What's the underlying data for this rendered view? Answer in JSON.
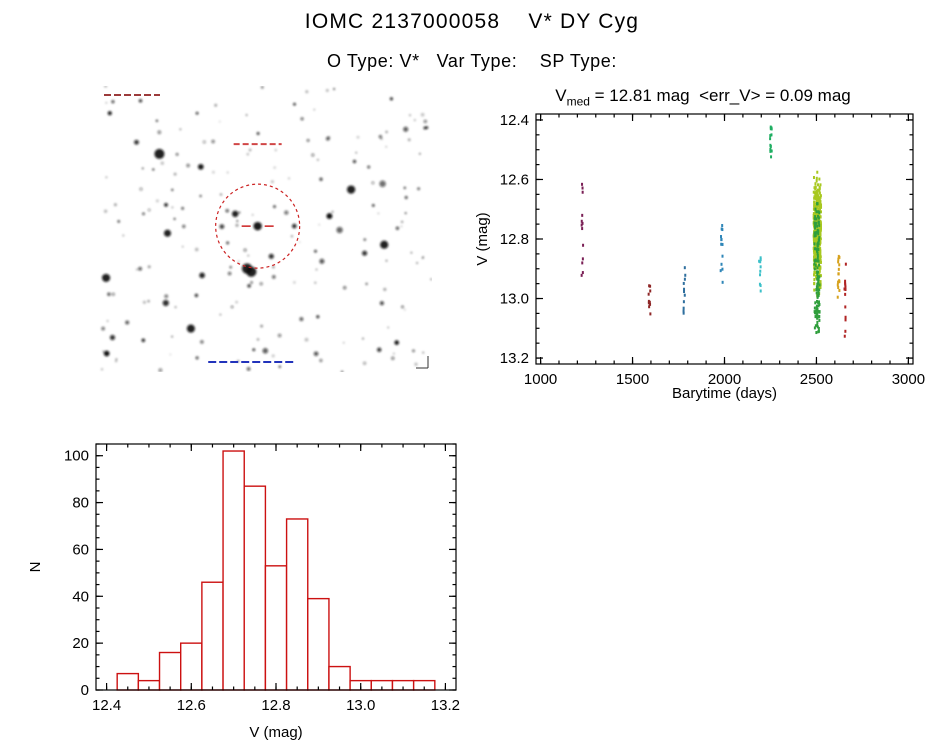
{
  "page": {
    "title": "IOMC 2137000058    V* DY Cyg",
    "subtitle": "O Type: V*   Var Type:    SP Type:"
  },
  "finder_chart": {
    "target_circle": {
      "color": "#cc2222",
      "style": "dashed"
    },
    "seed": 20137,
    "small_stars": 170,
    "medium_stars": 26,
    "large_stars": 9,
    "annotation_colors": {
      "top_left": "#8b1a1a",
      "target_label": "#cc3333",
      "footer": "#2233bb"
    }
  },
  "chart_data": [
    {
      "id": "lightcurve",
      "type": "scatter",
      "title_parts": {
        "prefix": "V",
        "sub": "med",
        "rest": " = 12.81 mag  <err_V> = 0.09 mag"
      },
      "v_med_mag": 12.81,
      "err_v_mag": 0.09,
      "xlabel": "Barytime (days)",
      "ylabel": "V (mag)",
      "xlim": [
        975,
        3025
      ],
      "ylim_top_to_bottom": [
        12.38,
        13.22
      ],
      "y_axis_inverted": true,
      "grid": false,
      "legend": "none",
      "xticks": [
        {
          "v": 1000,
          "l": "1000"
        },
        {
          "v": 1500,
          "l": "1500"
        },
        {
          "v": 2000,
          "l": "2000"
        },
        {
          "v": 2500,
          "l": "2500"
        },
        {
          "v": 3000,
          "l": "3000"
        }
      ],
      "yticks": [
        {
          "v": 12.4,
          "l": "12.4"
        },
        {
          "v": 12.6,
          "l": "12.6"
        },
        {
          "v": 12.8,
          "l": "12.8"
        },
        {
          "v": 13.0,
          "l": "13.0"
        },
        {
          "v": 13.2,
          "l": "13.2"
        }
      ],
      "xminor_step": 100,
      "yminor_step": 0.05,
      "seed": 99173,
      "series": [
        {
          "name": "epoch-1230",
          "color": "#7a1f55",
          "x": 1228,
          "xspread": 5,
          "ymin": 12.56,
          "ymax": 12.96,
          "n": 13,
          "dist": "uniform"
        },
        {
          "name": "epoch-1590",
          "color": "#8f2727",
          "x": 1592,
          "xspread": 5,
          "ymin": 12.93,
          "ymax": 13.08,
          "n": 10,
          "dist": "uniform"
        },
        {
          "name": "epoch-1780",
          "color": "#2f6f9e",
          "x": 1782,
          "xspread": 5,
          "ymin": 12.87,
          "ymax": 13.05,
          "n": 11,
          "dist": "uniform"
        },
        {
          "name": "epoch-1985",
          "color": "#2f86b8",
          "x": 1985,
          "xspread": 6,
          "ymin": 12.74,
          "ymax": 12.96,
          "n": 13,
          "dist": "uniform"
        },
        {
          "name": "epoch-2190",
          "color": "#3cc0c9",
          "x": 2192,
          "xspread": 5,
          "ymin": 12.86,
          "ymax": 12.98,
          "n": 10,
          "dist": "uniform"
        },
        {
          "name": "epoch-2250",
          "color": "#1fae62",
          "x": 2252,
          "xspread": 5,
          "ymin": 12.42,
          "ymax": 12.53,
          "n": 14,
          "dist": "uniform"
        },
        {
          "name": "epoch-2500-dense",
          "color": "#a8c820",
          "x": 2505,
          "xspread": 20,
          "ymin": 12.55,
          "ymax": 13.02,
          "n": 430,
          "dist": "normal"
        },
        {
          "name": "epoch-2500-green",
          "color": "#2f9e3c",
          "x": 2503,
          "xspread": 14,
          "ymin": 12.68,
          "ymax": 13.12,
          "n": 120,
          "dist": "uniform"
        },
        {
          "name": "epoch-2620",
          "color": "#d7a21e",
          "x": 2620,
          "xspread": 5,
          "ymin": 12.84,
          "ymax": 13.0,
          "n": 15,
          "dist": "uniform"
        },
        {
          "name": "epoch-2655",
          "color": "#b02424",
          "x": 2656,
          "xspread": 4,
          "ymin": 12.88,
          "ymax": 13.15,
          "n": 13,
          "dist": "uniform"
        }
      ]
    },
    {
      "id": "histogram",
      "type": "bar",
      "xlabel": "V (mag)",
      "ylabel": "N",
      "bar_color": "#cc1111",
      "xlim": [
        12.375,
        13.225
      ],
      "ylim_top_to_bottom": [
        105,
        0
      ],
      "grid": false,
      "legend": "none",
      "xticks": [
        {
          "v": 12.4,
          "l": "12.4"
        },
        {
          "v": 12.6,
          "l": "12.6"
        },
        {
          "v": 12.8,
          "l": "12.8"
        },
        {
          "v": 13.0,
          "l": "13.0"
        },
        {
          "v": 13.2,
          "l": "13.2"
        }
      ],
      "yticks": [
        {
          "v": 0,
          "l": "0"
        },
        {
          "v": 20,
          "l": "20"
        },
        {
          "v": 40,
          "l": "40"
        },
        {
          "v": 60,
          "l": "60"
        },
        {
          "v": 80,
          "l": "80"
        },
        {
          "v": 100,
          "l": "100"
        }
      ],
      "xminor_step": 0.05,
      "yminor_step": 5,
      "bins": {
        "start": 12.425,
        "width": 0.05,
        "counts": [
          7,
          4,
          16,
          20,
          46,
          102,
          87,
          53,
          73,
          39,
          10,
          4,
          4,
          4,
          4
        ]
      }
    }
  ]
}
